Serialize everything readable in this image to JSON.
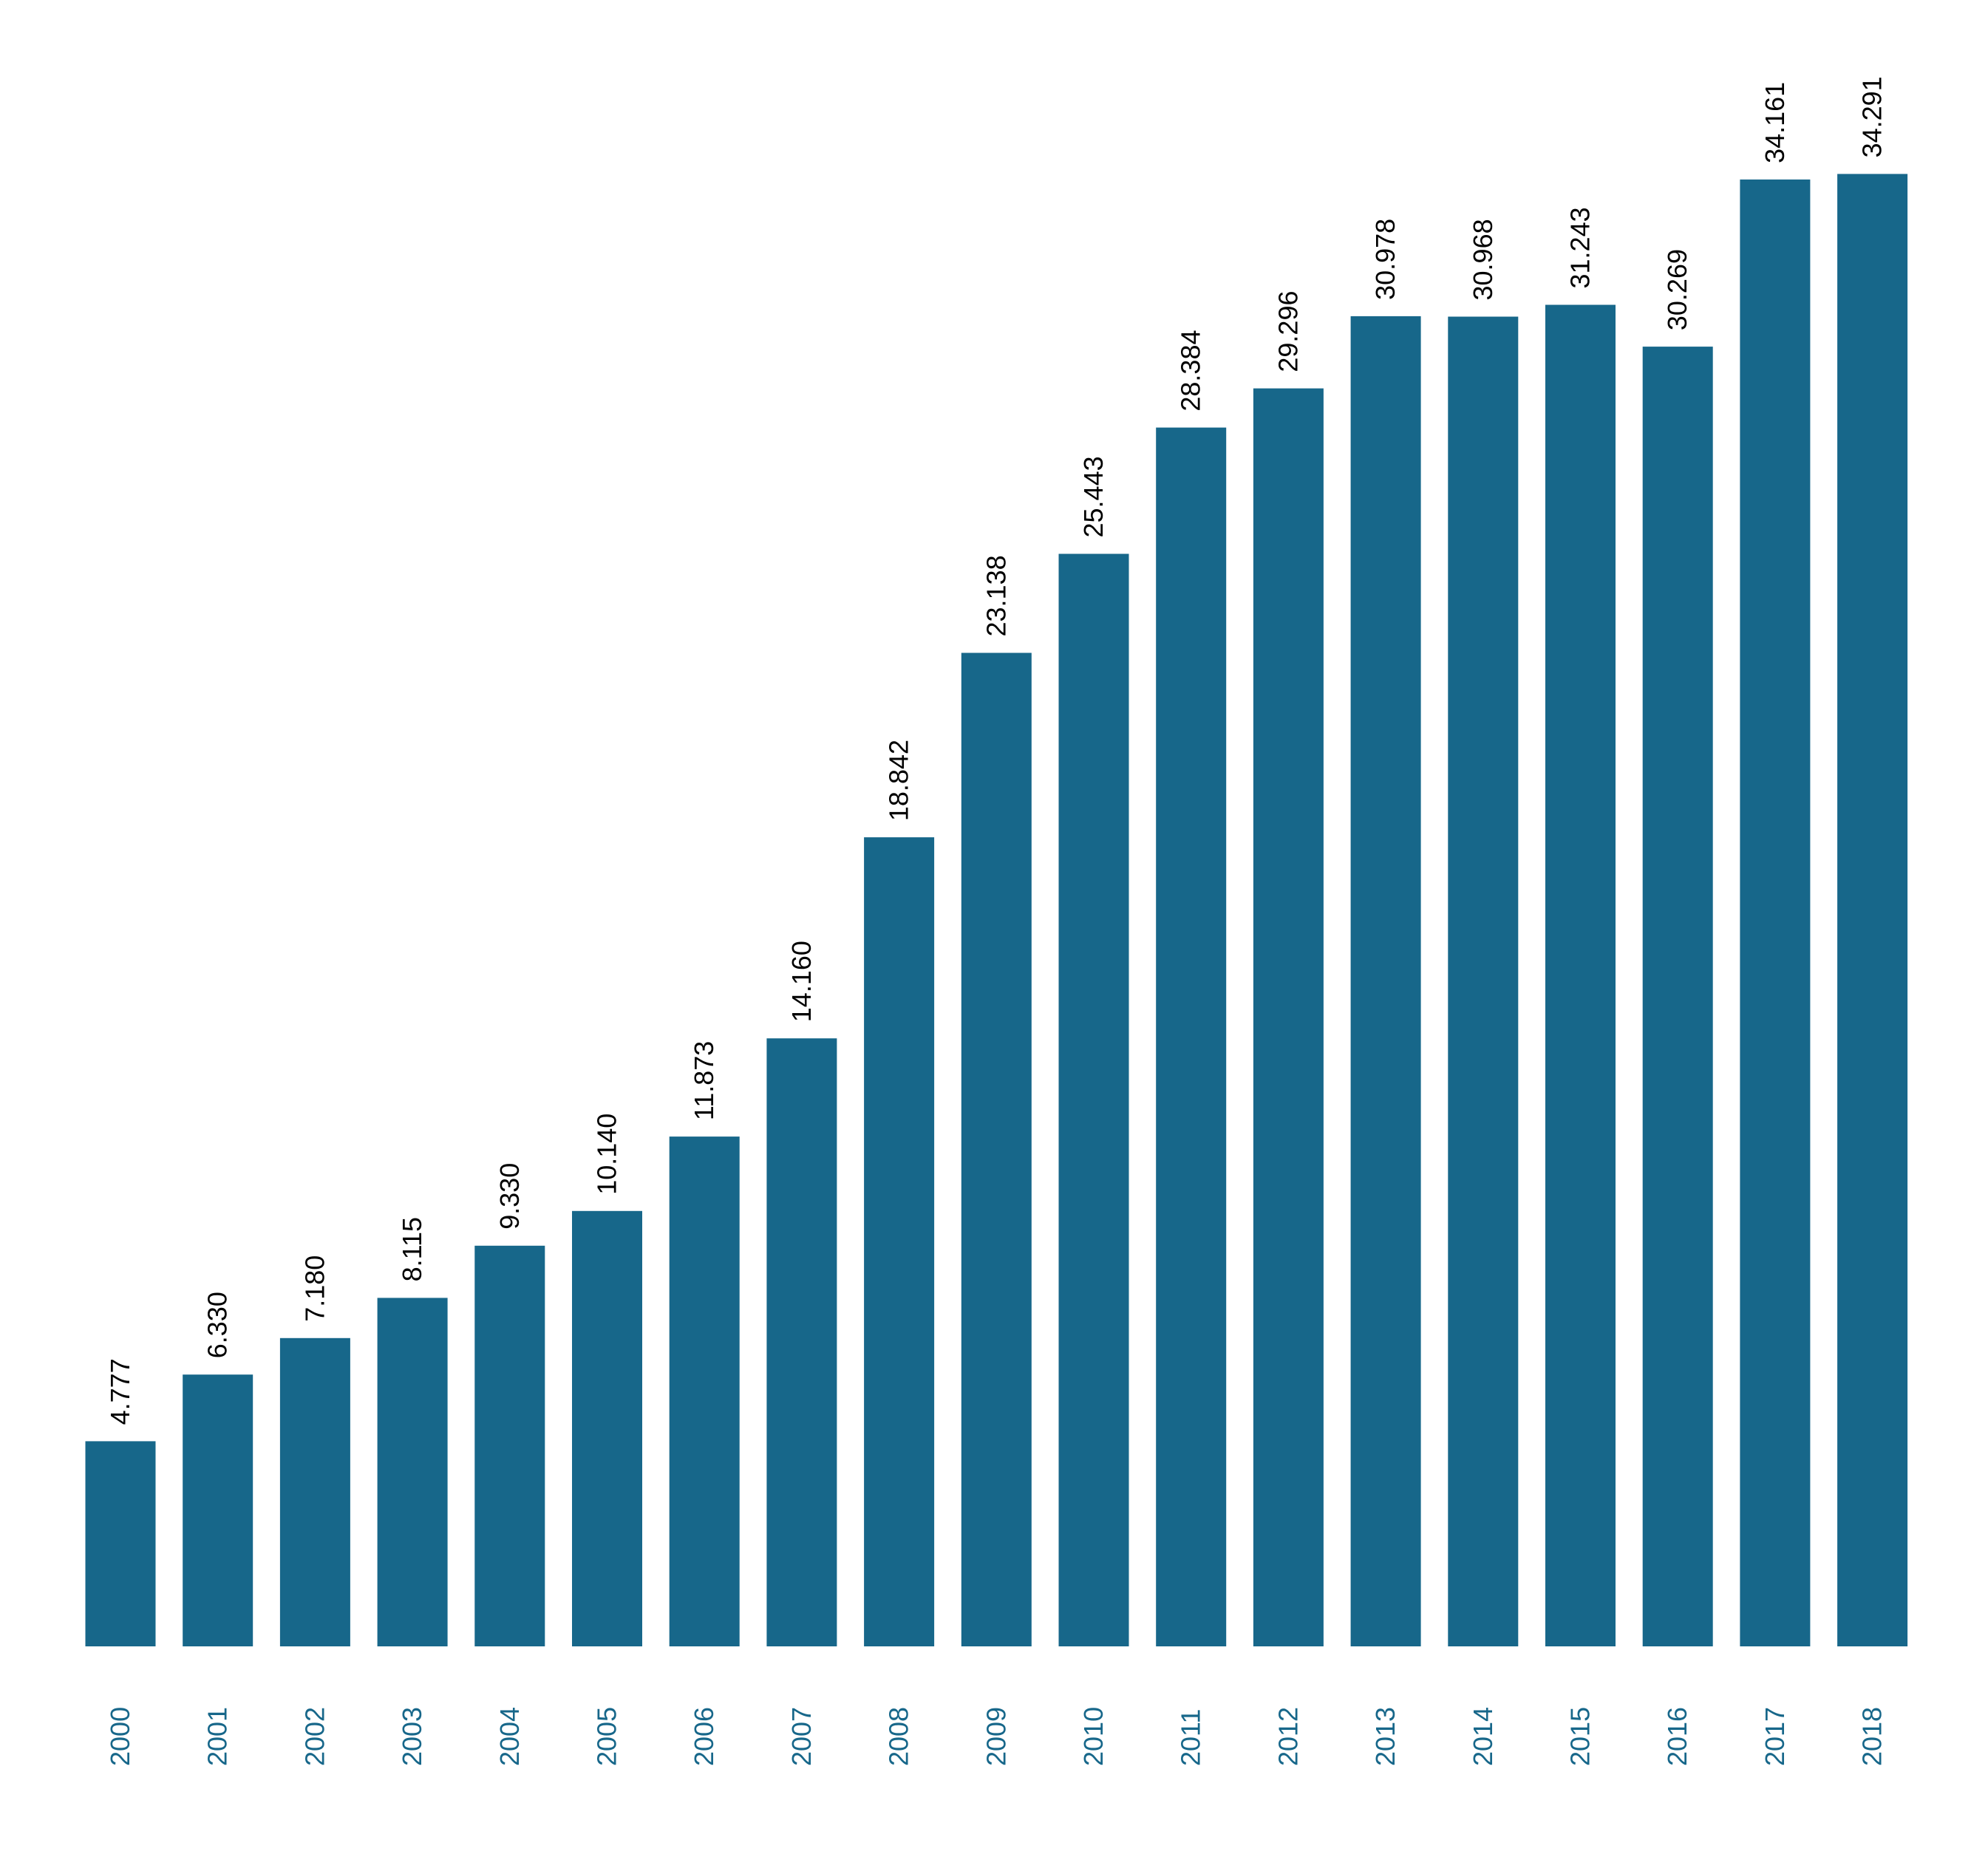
{
  "chart_data": {
    "type": "bar",
    "title": "",
    "xlabel": "",
    "ylabel": "",
    "categories": [
      "2000",
      "2001",
      "2002",
      "2003",
      "2004",
      "2005",
      "2006",
      "2007",
      "2008",
      "2009",
      "2010",
      "2011",
      "2012",
      "2013",
      "2014",
      "2015",
      "2016",
      "2017",
      "2018"
    ],
    "values": [
      4.777,
      6.33,
      7.18,
      8.115,
      9.33,
      10.14,
      11.873,
      14.16,
      18.842,
      23.138,
      25.443,
      28.384,
      29.296,
      30.978,
      30.968,
      31.243,
      30.269,
      34.161,
      34.291
    ],
    "value_labels": [
      "4.777",
      "6.330",
      "7.180",
      "8.115",
      "9.330",
      "10.140",
      "11.873",
      "14.160",
      "18.842",
      "23.138",
      "25.443",
      "28.384",
      "29.296",
      "30.978",
      "30.968",
      "31.243",
      "30.269",
      "34.161",
      "34.291"
    ],
    "ylim": [
      0,
      34.9
    ],
    "grid": false,
    "legend": "none",
    "bar_color": "#17678a",
    "category_label_color": "#17678a",
    "value_label_color": "#000000"
  }
}
